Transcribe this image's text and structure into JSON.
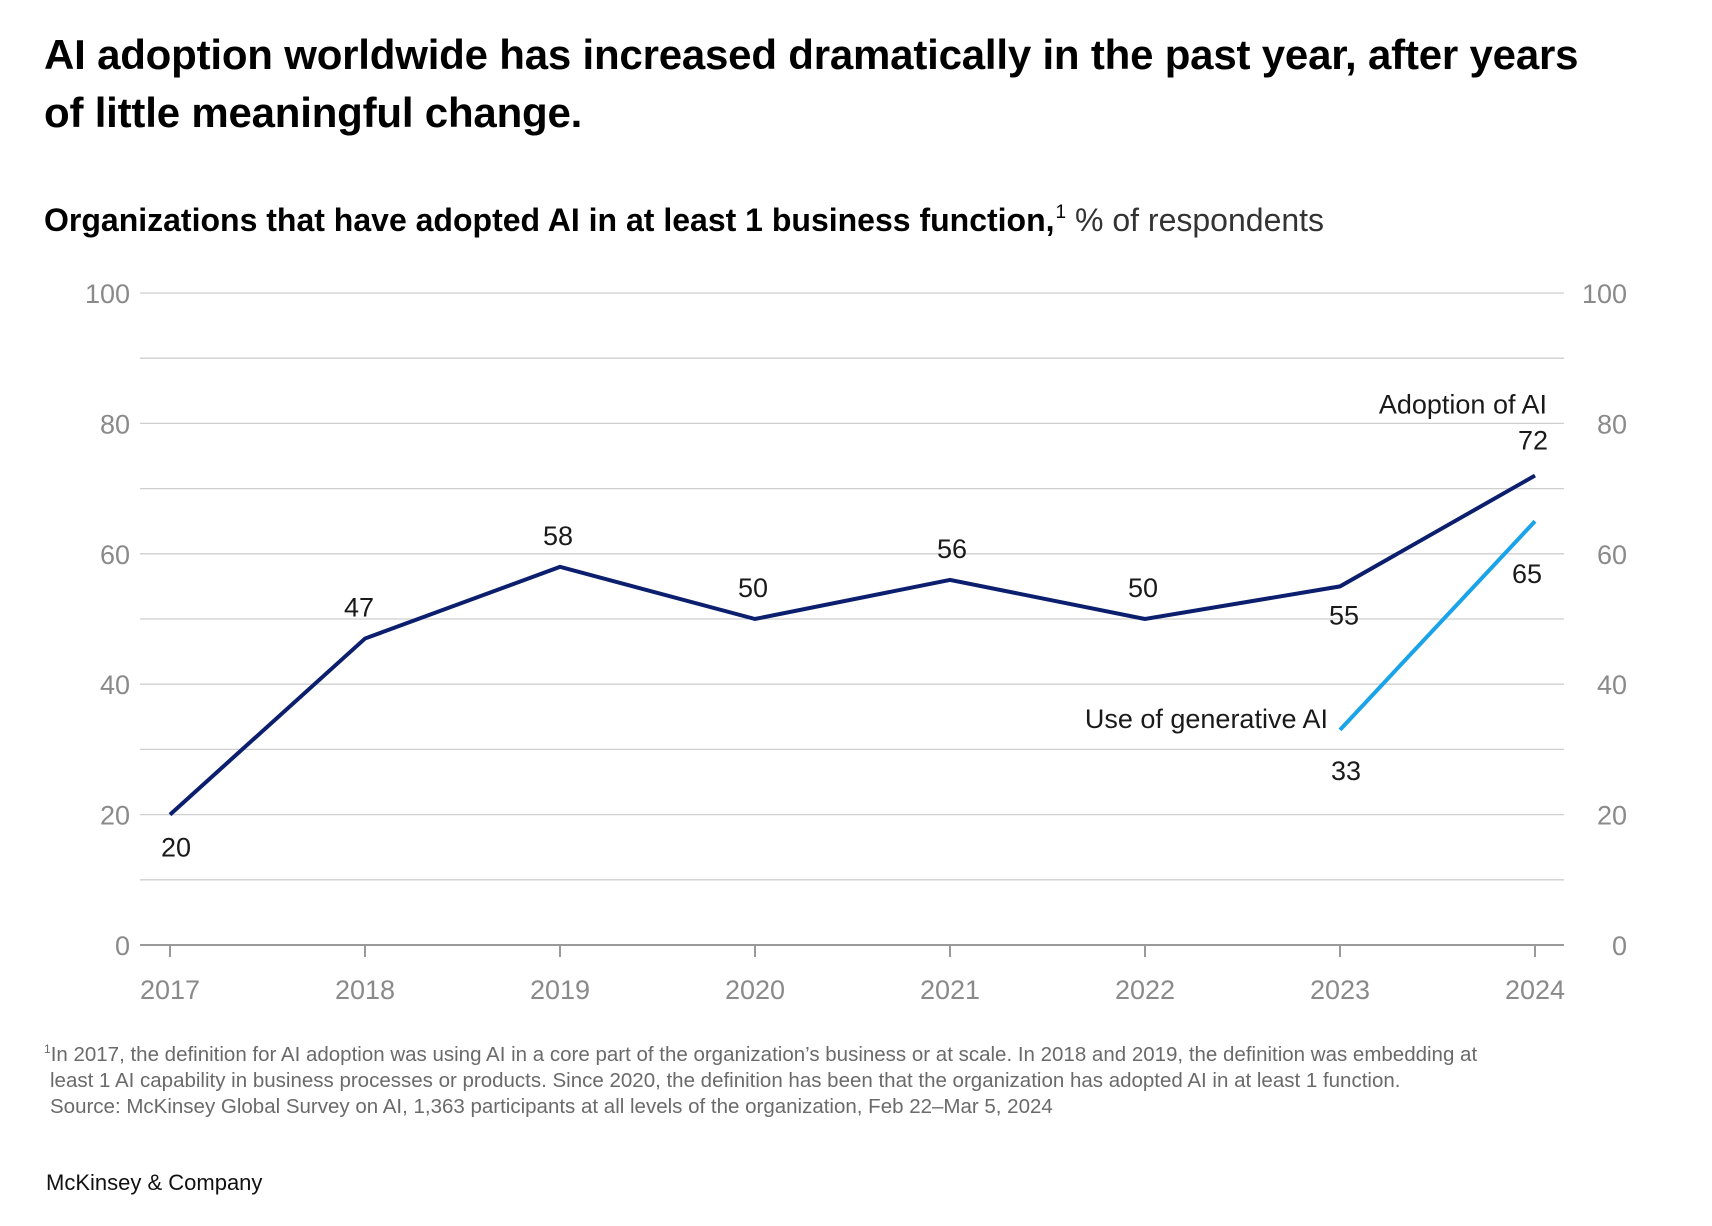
{
  "title": "AI adoption worldwide has increased dramatically in the past year, after years of little meaningful change.",
  "subtitle": {
    "main": "Organizations that have adopted AI in at least 1 business function,",
    "footnote_marker": "1",
    "unit": "% of respondents"
  },
  "colors": {
    "adoption": "#0c1f6e",
    "genai": "#1aa3e8",
    "grid": "#cfcfcf",
    "axis": "#9a9a9a",
    "tick_text": "#8a8a8a"
  },
  "chart_data": {
    "type": "line",
    "categories": [
      "2017",
      "2018",
      "2019",
      "2020",
      "2021",
      "2022",
      "2023",
      "2024"
    ],
    "ylim": [
      0,
      100
    ],
    "yticks_left": [
      "100",
      "80",
      "60",
      "40",
      "20",
      "0"
    ],
    "yticks_right": [
      "100",
      "80",
      "60",
      "40",
      "20",
      "0"
    ],
    "gridlines_every": 10,
    "series": [
      {
        "name": "Adoption of AI",
        "values": [
          20,
          47,
          58,
          50,
          56,
          50,
          55,
          72
        ],
        "labels": [
          "20",
          "47",
          "58",
          "50",
          "56",
          "50",
          "55",
          "72"
        ]
      },
      {
        "name": "Use of generative AI",
        "x": [
          "2023",
          "2024"
        ],
        "values": [
          33,
          65
        ],
        "labels": [
          "33",
          "65"
        ]
      }
    ]
  },
  "footnote": {
    "marker": "1",
    "line1": "In 2017, the definition for AI adoption was using AI in a core part of the organization’s business or at scale. In 2018 and 2019, the definition was embedding at",
    "line2": "least 1 AI capability in business processes or products. Since 2020, the definition has been that the organization has adopted AI in at least 1 function.",
    "source": "Source: McKinsey Global Survey on AI, 1,363 participants at all levels of the organization, Feb 22–Mar 5, 2024"
  },
  "brand": "McKinsey & Company"
}
